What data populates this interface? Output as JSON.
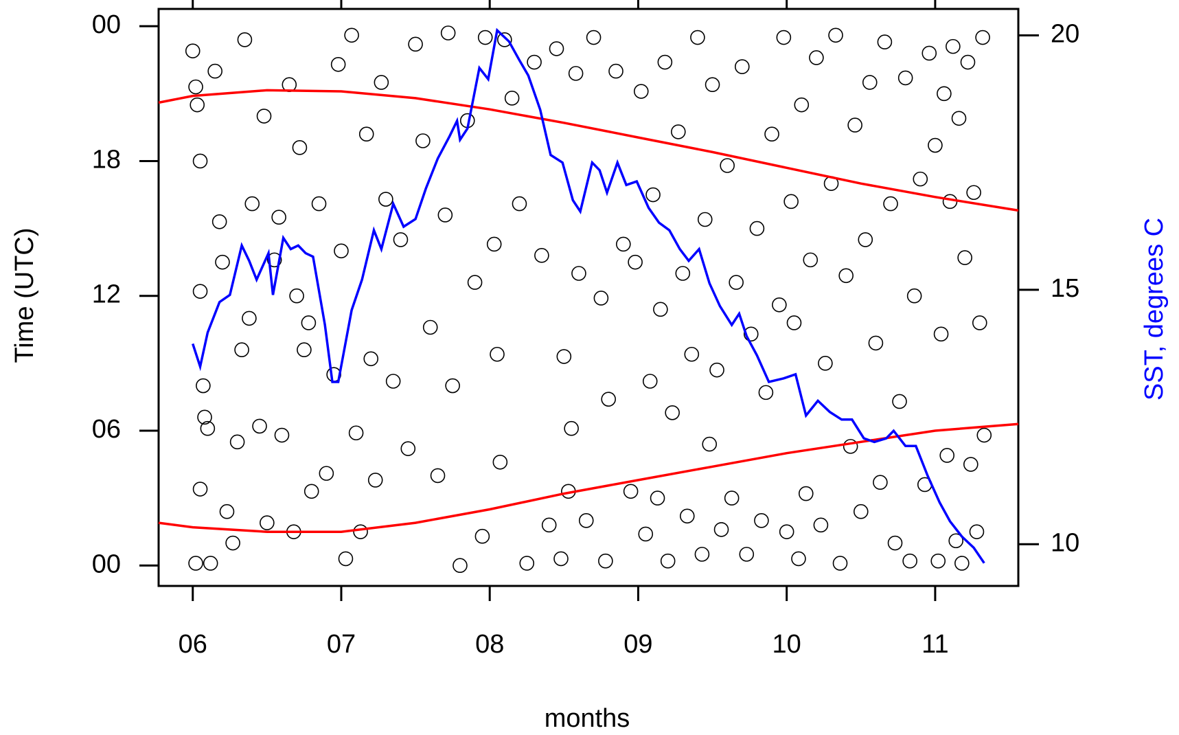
{
  "chart_data": {
    "type": "scatter",
    "x_label": "months",
    "y_label": "Time (UTC)",
    "y2_label": "SST, degrees C",
    "xlim": [
      5.77,
      11.56
    ],
    "ylim": [
      -0.91,
      24.77
    ],
    "y2lim": [
      9.18,
      20.52
    ],
    "xticks": [
      {
        "value": 6,
        "label": "06"
      },
      {
        "value": 7,
        "label": "07"
      },
      {
        "value": 8,
        "label": "08"
      },
      {
        "value": 9,
        "label": "09"
      },
      10,
      11
    ],
    "yticks": [
      {
        "value": 0,
        "label": "00"
      },
      {
        "value": 6,
        "label": "06"
      },
      12,
      18,
      {
        "value": 24,
        "label": "00"
      }
    ],
    "y2ticks": [
      10,
      15,
      20
    ],
    "series": [
      {
        "type": "scatter",
        "color": "#000000",
        "x": [
          6.0,
          6.02,
          6.03,
          6.05,
          6.05,
          6.07,
          6.08,
          6.1,
          6.02,
          6.05,
          6.12,
          6.15,
          6.18,
          6.2,
          6.23,
          6.27,
          6.3,
          6.33,
          6.35,
          6.38,
          6.4,
          6.45,
          6.48,
          6.5,
          6.55,
          6.58,
          6.6,
          6.65,
          6.68,
          6.7,
          6.72,
          6.75,
          6.78,
          6.8,
          6.85,
          6.9,
          6.95,
          6.98,
          7.0,
          7.03,
          7.07,
          7.1,
          7.13,
          7.17,
          7.2,
          7.23,
          7.27,
          7.3,
          7.35,
          7.4,
          7.45,
          7.5,
          7.55,
          7.6,
          7.65,
          7.7,
          7.72,
          7.75,
          7.8,
          7.85,
          7.9,
          7.95,
          7.97,
          8.03,
          8.05,
          8.07,
          8.1,
          8.15,
          8.2,
          8.25,
          8.3,
          8.35,
          8.4,
          8.45,
          8.48,
          8.5,
          8.53,
          8.55,
          8.58,
          8.6,
          8.65,
          8.7,
          8.75,
          8.78,
          8.8,
          8.85,
          8.9,
          8.95,
          8.98,
          9.02,
          9.05,
          9.08,
          9.1,
          9.13,
          9.15,
          9.18,
          9.2,
          9.23,
          9.27,
          9.3,
          9.33,
          9.36,
          9.4,
          9.43,
          9.45,
          9.48,
          9.5,
          9.53,
          9.56,
          9.6,
          9.63,
          9.66,
          9.7,
          9.73,
          9.76,
          9.8,
          9.83,
          9.86,
          9.9,
          9.95,
          9.98,
          10.0,
          10.03,
          10.05,
          10.08,
          10.1,
          10.13,
          10.16,
          10.2,
          10.23,
          10.26,
          10.3,
          10.33,
          10.36,
          10.4,
          10.43,
          10.46,
          10.5,
          10.53,
          10.56,
          10.6,
          10.63,
          10.66,
          10.7,
          10.73,
          10.76,
          10.8,
          10.83,
          10.86,
          10.9,
          10.93,
          10.96,
          11.0,
          11.02,
          11.04,
          11.06,
          11.08,
          11.1,
          11.12,
          11.14,
          11.16,
          11.18,
          11.2,
          11.22,
          11.24,
          11.26,
          11.28,
          11.3,
          11.32,
          11.33
        ],
        "values": [
          22.9,
          21.3,
          20.5,
          18.0,
          12.2,
          8.0,
          6.6,
          6.1,
          0.1,
          3.4,
          0.1,
          22.0,
          15.3,
          13.5,
          2.4,
          1.0,
          5.5,
          9.6,
          23.4,
          11.0,
          16.1,
          6.2,
          20.0,
          1.9,
          13.6,
          15.5,
          5.8,
          21.4,
          1.5,
          12.0,
          18.6,
          9.6,
          10.8,
          3.3,
          16.1,
          4.1,
          8.5,
          22.3,
          14.0,
          0.3,
          23.6,
          5.9,
          1.5,
          19.2,
          9.2,
          3.8,
          21.5,
          16.3,
          8.2,
          14.5,
          5.2,
          23.2,
          18.9,
          10.6,
          4.0,
          15.6,
          23.7,
          8.0,
          0.0,
          19.8,
          12.6,
          1.3,
          23.5,
          14.3,
          9.4,
          4.6,
          23.4,
          20.8,
          16.1,
          0.1,
          22.4,
          13.8,
          1.8,
          23.0,
          0.3,
          9.3,
          3.3,
          6.1,
          21.9,
          13.0,
          2.0,
          23.5,
          11.9,
          0.2,
          7.4,
          22.0,
          14.3,
          3.3,
          13.5,
          21.1,
          1.4,
          8.2,
          16.5,
          3.0,
          11.4,
          22.4,
          0.2,
          6.8,
          19.3,
          13.0,
          2.2,
          9.4,
          23.5,
          0.5,
          15.4,
          5.4,
          21.4,
          8.7,
          1.6,
          17.8,
          3.0,
          12.6,
          22.2,
          0.5,
          10.3,
          15.0,
          2.0,
          7.7,
          19.2,
          11.6,
          23.5,
          1.5,
          16.2,
          10.8,
          0.3,
          20.5,
          3.2,
          13.6,
          22.6,
          1.8,
          9.0,
          17.0,
          23.6,
          0.1,
          12.9,
          5.3,
          19.6,
          2.4,
          14.5,
          21.5,
          9.9,
          3.7,
          23.3,
          16.1,
          1.0,
          7.3,
          21.7,
          0.2,
          12.0,
          17.2,
          3.6,
          22.8,
          18.7,
          0.2,
          10.3,
          21.0,
          4.9,
          16.2,
          23.1,
          1.1,
          19.9,
          0.1,
          13.7,
          22.4,
          4.5,
          16.6,
          1.5,
          10.8,
          23.5,
          5.8
        ]
      },
      {
        "type": "line",
        "color": "#ff0000",
        "x": [
          5.77,
          6.0,
          6.5,
          7.0,
          7.5,
          8.0,
          8.5,
          9.0,
          9.5,
          10.0,
          10.5,
          11.0,
          11.56
        ],
        "values": [
          20.6,
          20.9,
          21.15,
          21.1,
          20.8,
          20.3,
          19.7,
          19.05,
          18.4,
          17.7,
          17.0,
          16.4,
          15.8
        ]
      },
      {
        "type": "line",
        "color": "#ff0000",
        "x": [
          5.77,
          6.0,
          6.5,
          7.0,
          7.5,
          8.0,
          8.5,
          9.0,
          9.5,
          10.0,
          10.5,
          11.0,
          11.56
        ],
        "values": [
          1.9,
          1.7,
          1.5,
          1.5,
          1.9,
          2.5,
          3.2,
          3.8,
          4.4,
          5.0,
          5.5,
          6.0,
          6.3
        ]
      },
      {
        "type": "line",
        "color": "#0000ff",
        "axis": "y2",
        "x": [
          6.0,
          6.05,
          6.1,
          6.18,
          6.25,
          6.33,
          6.38,
          6.43,
          6.51,
          6.54,
          6.61,
          6.66,
          6.71,
          6.76,
          6.81,
          6.89,
          6.94,
          6.98,
          7.07,
          7.14,
          7.22,
          7.27,
          7.35,
          7.42,
          7.5,
          7.57,
          7.65,
          7.73,
          7.78,
          7.8,
          7.85,
          7.93,
          7.99,
          8.05,
          8.13,
          8.2,
          8.26,
          8.34,
          8.41,
          8.49,
          8.56,
          8.61,
          8.69,
          8.74,
          8.79,
          8.86,
          8.92,
          8.99,
          9.07,
          9.14,
          9.21,
          9.28,
          9.34,
          9.41,
          9.48,
          9.55,
          9.63,
          9.68,
          9.73,
          9.8,
          9.88,
          9.98,
          10.06,
          10.13,
          10.21,
          10.29,
          10.37,
          10.44,
          10.52,
          10.59,
          10.67,
          10.72,
          10.8,
          10.87,
          10.95,
          11.03,
          11.1,
          11.18,
          11.26,
          11.33
        ],
        "values": [
          13.94,
          13.49,
          14.16,
          14.76,
          14.9,
          15.87,
          15.57,
          15.2,
          15.72,
          14.9,
          16.02,
          15.8,
          15.87,
          15.72,
          15.65,
          14.31,
          13.19,
          13.19,
          14.6,
          15.2,
          16.17,
          15.8,
          16.69,
          16.24,
          16.39,
          16.99,
          17.58,
          18.02,
          18.32,
          17.95,
          18.17,
          19.36,
          19.14,
          20.1,
          19.88,
          19.51,
          19.21,
          18.54,
          17.65,
          17.5,
          16.76,
          16.54,
          17.5,
          17.35,
          16.91,
          17.5,
          17.06,
          17.13,
          16.61,
          16.32,
          16.17,
          15.8,
          15.57,
          15.8,
          15.13,
          14.68,
          14.31,
          14.53,
          14.09,
          13.71,
          13.19,
          13.26,
          13.34,
          12.53,
          12.82,
          12.6,
          12.45,
          12.45,
          12.08,
          12.01,
          12.08,
          12.23,
          11.93,
          11.93,
          11.34,
          10.82,
          10.45,
          10.15,
          9.93,
          9.63
        ]
      }
    ]
  }
}
